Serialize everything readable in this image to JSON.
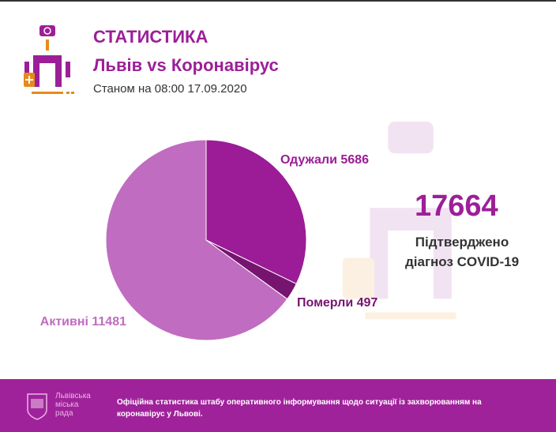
{
  "header": {
    "title": "СТАТИСТИКА",
    "subtitle": "Львів vs Коронавірус",
    "date": "Станом на 08:00 17.09.2020"
  },
  "summary": {
    "total": "17664",
    "caption_line1": "Підтверджено",
    "caption_line2": "діагноз COVID-19"
  },
  "footer": {
    "city_line1": "Львівська",
    "city_line2": "міська",
    "city_line3": "рада",
    "text": "Офіційна статистика штабу оперативного інформування щодо ситуації із захворюванням на коронавірус у Львові."
  },
  "colors": {
    "accent": "#9c1f98",
    "recovered": "#9b1c96",
    "deaths": "#761470",
    "active": "#c06cc0"
  },
  "chart_data": {
    "type": "pie",
    "title": "",
    "slices": [
      {
        "name": "Одужали",
        "value": 5686,
        "label": "Одужали 5686",
        "color": "#9b1c96"
      },
      {
        "name": "Померли",
        "value": 497,
        "label": "Померли 497",
        "color": "#761470"
      },
      {
        "name": "Активні",
        "value": 11481,
        "label": "Активні 11481",
        "color": "#c06cc0"
      }
    ],
    "start": "top",
    "direction": "clockwise"
  }
}
